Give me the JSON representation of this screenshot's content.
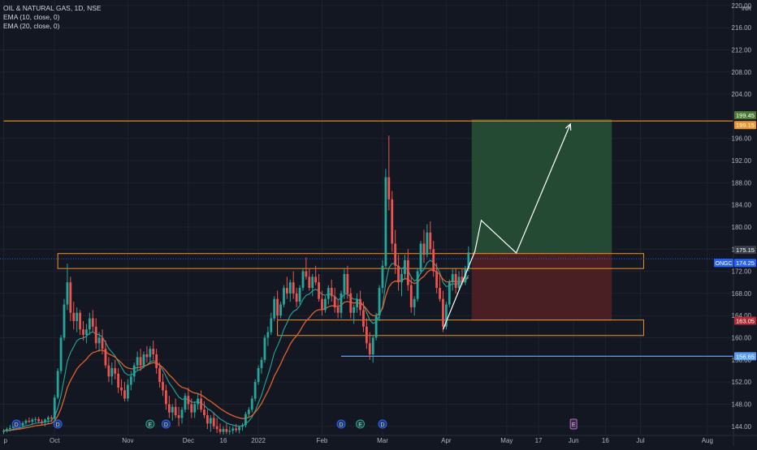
{
  "header": {
    "symbol_title": "OIL & NATURAL GAS, 1D, NSE",
    "indicators": [
      "EMA (10, close, 0)",
      "EMA (20, close, 0)"
    ],
    "currency": "INR"
  },
  "colors": {
    "background": "#131722",
    "grid": "#1e222d",
    "up": "#26a69a",
    "down": "#ef5350",
    "ema10": "#26a69a",
    "ema20": "#e0622b",
    "target_line": "#f0932b",
    "zone_border": "#f0932b",
    "support_line": "#5b9cf6",
    "profit_fill": "#244a33",
    "loss_fill": "#4a1f24",
    "price_tag": "#2962ff"
  },
  "chart_data": {
    "type": "candlestick",
    "title": "OIL & NATURAL GAS, 1D, NSE",
    "ylim": [
      142.5,
      221
    ],
    "y_ticks": [
      144,
      148,
      152,
      156,
      160,
      164,
      168,
      172,
      176,
      180,
      184,
      188,
      192,
      196,
      204,
      208,
      212,
      216,
      220
    ],
    "x_ticks": [
      {
        "label": "p",
        "bar": 0
      },
      {
        "label": "Oct",
        "bar": 16
      },
      {
        "label": "Nov",
        "bar": 39
      },
      {
        "label": "Dec",
        "bar": 58
      },
      {
        "label": "16",
        "bar": 69
      },
      {
        "label": "2022",
        "bar": 80
      },
      {
        "label": "Feb",
        "bar": 100
      },
      {
        "label": "Mar",
        "bar": 119
      },
      {
        "label": "Apr",
        "bar": 139
      },
      {
        "label": "May",
        "bar": 158
      },
      {
        "label": "17",
        "bar": 168
      },
      {
        "label": "Jun",
        "bar": 179
      },
      {
        "label": "16",
        "bar": 189
      },
      {
        "label": "Jul",
        "bar": 200
      },
      {
        "label": "Aug",
        "bar": 221
      }
    ],
    "price_labels": [
      {
        "text": "199.45",
        "value": 199.45,
        "bg": "#4c7a35"
      },
      {
        "text": "199.15",
        "value": 199.15,
        "bg": "#f0932b"
      },
      {
        "text": "175.15",
        "value": 175.15,
        "bg": "#3a3e4a"
      },
      {
        "text": "174.25",
        "value": 174.25,
        "bg": "#2962ff",
        "tag": "ONGC"
      },
      {
        "text": "163.05",
        "value": 163.05,
        "bg": "#b22833"
      },
      {
        "text": "156.65",
        "value": 156.65,
        "bg": "#5b9cf6"
      }
    ],
    "horizontal_lines": [
      {
        "name": "target",
        "value": 199.15,
        "from_bar": 0
      },
      {
        "name": "support",
        "value": 156.65,
        "from_bar": 106
      }
    ],
    "zones": [
      {
        "name": "resistance-zone",
        "from_bar": 17,
        "to_bar": 201,
        "top": 175.2,
        "bottom": 172.5
      },
      {
        "name": "support-zone",
        "from_bar": 86,
        "to_bar": 201,
        "top": 163.2,
        "bottom": 160.4
      }
    ],
    "position": {
      "from_bar": 147,
      "to_bar": 191,
      "entry": 175.15,
      "target": 199.45,
      "stop": 163.05
    },
    "path": [
      [
        138,
        161.5
      ],
      [
        148,
        175.6
      ],
      [
        150,
        181.2
      ],
      [
        161,
        175.3
      ],
      [
        178,
        198.6
      ]
    ],
    "event_markers": [
      {
        "label": "D",
        "bar": 4
      },
      {
        "label": "D",
        "bar": 17
      },
      {
        "label": "E",
        "bar": 46
      },
      {
        "label": "D",
        "bar": 51
      },
      {
        "label": "D",
        "bar": 106
      },
      {
        "label": "E",
        "bar": 112
      },
      {
        "label": "D",
        "bar": 119
      },
      {
        "label": "E",
        "bar": 179
      }
    ],
    "candles": [
      [
        143.0,
        143.5,
        142.6,
        143.2
      ],
      [
        143.2,
        143.8,
        142.9,
        143.5
      ],
      [
        143.5,
        144.2,
        143.1,
        143.7
      ],
      [
        143.7,
        144.4,
        143.3,
        144.0
      ],
      [
        144.0,
        144.8,
        143.6,
        144.3
      ],
      [
        144.3,
        145.0,
        143.8,
        144.1
      ],
      [
        144.1,
        144.9,
        143.7,
        144.6
      ],
      [
        144.6,
        145.3,
        144.2,
        145.0
      ],
      [
        145.0,
        145.6,
        144.6,
        144.8
      ],
      [
        144.8,
        145.5,
        144.2,
        145.2
      ],
      [
        145.2,
        145.7,
        144.7,
        145.3
      ],
      [
        145.3,
        145.7,
        144.6,
        144.9
      ],
      [
        144.9,
        145.3,
        144.3,
        144.8
      ],
      [
        144.8,
        145.4,
        144.0,
        145.2
      ],
      [
        145.2,
        145.9,
        144.4,
        145.6
      ],
      [
        145.6,
        146.0,
        144.8,
        145.4
      ],
      [
        145.4,
        149.7,
        144.9,
        149.2
      ],
      [
        149.2,
        154.5,
        148.9,
        154.0
      ],
      [
        154.0,
        160.5,
        153.5,
        160.0
      ],
      [
        160.0,
        167.0,
        159.5,
        166.0
      ],
      [
        166.0,
        173.4,
        165.0,
        170.0
      ],
      [
        170.0,
        171.0,
        163.0,
        164.5
      ],
      [
        164.5,
        166.5,
        161.5,
        163.0
      ],
      [
        163.0,
        165.5,
        161.0,
        164.5
      ],
      [
        164.5,
        165.0,
        160.5,
        161.5
      ],
      [
        161.5,
        163.0,
        159.5,
        160.5
      ],
      [
        160.5,
        162.5,
        159.0,
        161.5
      ],
      [
        161.5,
        164.5,
        160.5,
        163.5
      ],
      [
        163.5,
        165.0,
        161.0,
        162.0
      ],
      [
        162.0,
        163.5,
        158.0,
        159.0
      ],
      [
        159.0,
        161.0,
        157.5,
        160.0
      ],
      [
        160.0,
        161.5,
        157.0,
        158.0
      ],
      [
        158.0,
        159.5,
        154.5,
        155.0
      ],
      [
        155.0,
        156.5,
        152.0,
        153.0
      ],
      [
        153.0,
        155.5,
        151.5,
        154.5
      ],
      [
        154.5,
        156.0,
        152.5,
        153.5
      ],
      [
        153.5,
        154.5,
        150.0,
        151.0
      ],
      [
        151.0,
        152.5,
        149.5,
        150.5
      ],
      [
        150.5,
        152.0,
        148.5,
        149.0
      ],
      [
        149.0,
        152.5,
        148.5,
        151.5
      ],
      [
        151.5,
        154.0,
        150.5,
        153.0
      ],
      [
        153.0,
        155.5,
        152.0,
        155.0
      ],
      [
        155.0,
        157.5,
        154.0,
        156.5
      ],
      [
        156.5,
        158.0,
        154.0,
        155.0
      ],
      [
        155.0,
        157.5,
        154.5,
        157.0
      ],
      [
        157.0,
        158.5,
        155.5,
        156.5
      ],
      [
        156.5,
        158.5,
        155.5,
        158.0
      ],
      [
        158.0,
        159.5,
        156.0,
        157.0
      ],
      [
        157.0,
        158.0,
        153.5,
        154.5
      ],
      [
        154.5,
        155.5,
        151.0,
        152.0
      ],
      [
        152.0,
        153.5,
        149.5,
        150.5
      ],
      [
        150.5,
        151.5,
        147.0,
        148.0
      ],
      [
        148.0,
        149.5,
        145.5,
        146.5
      ],
      [
        146.5,
        148.0,
        145.0,
        147.5
      ],
      [
        147.5,
        149.0,
        145.5,
        146.0
      ],
      [
        146.0,
        147.5,
        144.0,
        145.5
      ],
      [
        145.5,
        147.5,
        144.5,
        147.0
      ],
      [
        147.0,
        150.0,
        146.5,
        149.5
      ],
      [
        149.5,
        151.0,
        147.0,
        148.0
      ],
      [
        148.0,
        149.0,
        145.5,
        146.5
      ],
      [
        146.5,
        148.5,
        145.5,
        148.0
      ],
      [
        148.0,
        150.0,
        147.0,
        149.0
      ],
      [
        149.0,
        150.5,
        146.5,
        147.0
      ],
      [
        147.0,
        148.5,
        145.5,
        146.0
      ],
      [
        146.0,
        147.0,
        143.5,
        144.5
      ],
      [
        144.5,
        146.0,
        143.0,
        145.5
      ],
      [
        145.5,
        146.5,
        143.5,
        144.0
      ],
      [
        144.0,
        145.5,
        142.8,
        143.5
      ],
      [
        143.5,
        144.5,
        142.6,
        143.0
      ],
      [
        143.0,
        144.0,
        142.5,
        143.5
      ],
      [
        143.5,
        144.5,
        142.6,
        143.0
      ],
      [
        143.0,
        144.0,
        142.5,
        143.2
      ],
      [
        143.2,
        144.0,
        142.6,
        143.6
      ],
      [
        143.6,
        144.4,
        142.9,
        143.3
      ],
      [
        143.3,
        144.1,
        142.7,
        143.9
      ],
      [
        143.9,
        144.6,
        143.2,
        144.2
      ],
      [
        144.2,
        146.6,
        143.8,
        146.2
      ],
      [
        146.2,
        147.5,
        145.5,
        147.0
      ],
      [
        147.0,
        149.5,
        146.5,
        149.0
      ],
      [
        149.0,
        152.5,
        148.5,
        152.0
      ],
      [
        152.0,
        155.0,
        151.5,
        154.5
      ],
      [
        154.5,
        156.5,
        153.5,
        156.0
      ],
      [
        156.0,
        160.5,
        155.5,
        160.0
      ],
      [
        160.0,
        162.0,
        158.5,
        161.0
      ],
      [
        161.0,
        164.5,
        160.5,
        163.5
      ],
      [
        163.5,
        167.5,
        163.0,
        167.0
      ],
      [
        167.0,
        168.5,
        163.0,
        164.0
      ],
      [
        164.0,
        166.5,
        163.5,
        166.0
      ],
      [
        166.0,
        169.5,
        165.5,
        169.0
      ],
      [
        169.0,
        171.0,
        167.0,
        168.0
      ],
      [
        168.0,
        170.5,
        166.5,
        170.0
      ],
      [
        170.0,
        172.0,
        167.0,
        168.0
      ],
      [
        168.0,
        169.0,
        165.5,
        166.5
      ],
      [
        166.5,
        169.5,
        166.0,
        169.0
      ],
      [
        169.0,
        172.5,
        168.5,
        172.0
      ],
      [
        172.0,
        174.5,
        170.5,
        171.0
      ],
      [
        171.0,
        172.5,
        168.5,
        169.0
      ],
      [
        169.0,
        171.5,
        167.5,
        171.0
      ],
      [
        171.0,
        173.0,
        169.5,
        170.0
      ],
      [
        170.0,
        171.5,
        166.5,
        167.0
      ],
      [
        167.0,
        168.5,
        164.0,
        165.0
      ],
      [
        165.0,
        167.5,
        164.5,
        167.0
      ],
      [
        167.0,
        169.5,
        166.0,
        169.0
      ],
      [
        169.0,
        170.5,
        166.5,
        167.5
      ],
      [
        167.5,
        169.0,
        164.5,
        165.5
      ],
      [
        165.5,
        167.0,
        163.5,
        164.5
      ],
      [
        164.5,
        168.5,
        163.5,
        168.0
      ],
      [
        168.0,
        172.5,
        167.0,
        171.5
      ],
      [
        171.5,
        173.0,
        167.0,
        168.0
      ],
      [
        168.0,
        169.0,
        163.5,
        164.5
      ],
      [
        164.5,
        166.0,
        162.5,
        165.5
      ],
      [
        165.5,
        168.0,
        164.5,
        167.0
      ],
      [
        167.0,
        168.5,
        164.0,
        165.0
      ],
      [
        165.0,
        166.5,
        161.0,
        162.0
      ],
      [
        162.0,
        163.5,
        158.0,
        159.0
      ],
      [
        159.0,
        161.0,
        156.0,
        157.0
      ],
      [
        157.0,
        160.5,
        155.5,
        160.0
      ],
      [
        160.0,
        164.5,
        159.5,
        164.0
      ],
      [
        164.0,
        169.5,
        163.0,
        169.0
      ],
      [
        169.0,
        174.0,
        168.0,
        173.0
      ],
      [
        173.0,
        190.5,
        172.5,
        189.0
      ],
      [
        189.0,
        196.5,
        183.0,
        185.0
      ],
      [
        185.0,
        186.5,
        175.5,
        177.0
      ],
      [
        177.0,
        179.5,
        171.5,
        173.0
      ],
      [
        173.0,
        175.0,
        168.5,
        170.0
      ],
      [
        170.0,
        172.5,
        167.5,
        171.5
      ],
      [
        171.5,
        175.0,
        170.5,
        174.0
      ],
      [
        174.0,
        176.0,
        168.5,
        169.5
      ],
      [
        169.5,
        171.0,
        164.5,
        165.5
      ],
      [
        165.5,
        167.5,
        164.0,
        167.0
      ],
      [
        167.0,
        172.5,
        166.5,
        172.0
      ],
      [
        172.0,
        177.5,
        171.5,
        177.0
      ],
      [
        177.0,
        179.5,
        173.5,
        175.0
      ],
      [
        175.0,
        180.5,
        174.5,
        179.0
      ],
      [
        179.0,
        181.0,
        175.0,
        176.0
      ],
      [
        176.0,
        177.5,
        171.0,
        172.0
      ],
      [
        172.0,
        173.5,
        168.0,
        169.0
      ],
      [
        169.0,
        171.5,
        166.5,
        167.0
      ],
      [
        167.0,
        168.5,
        161.0,
        162.0
      ],
      [
        162.0,
        166.5,
        161.5,
        166.0
      ],
      [
        166.0,
        170.5,
        165.5,
        170.0
      ],
      [
        170.0,
        172.5,
        168.5,
        171.5
      ],
      [
        171.5,
        172.5,
        168.0,
        169.0
      ],
      [
        169.0,
        172.0,
        168.5,
        171.0
      ],
      [
        171.0,
        172.5,
        169.5,
        170.0
      ],
      [
        170.0,
        173.0,
        169.5,
        172.5
      ],
      [
        172.5,
        176.5,
        172.0,
        175.4
      ]
    ]
  }
}
